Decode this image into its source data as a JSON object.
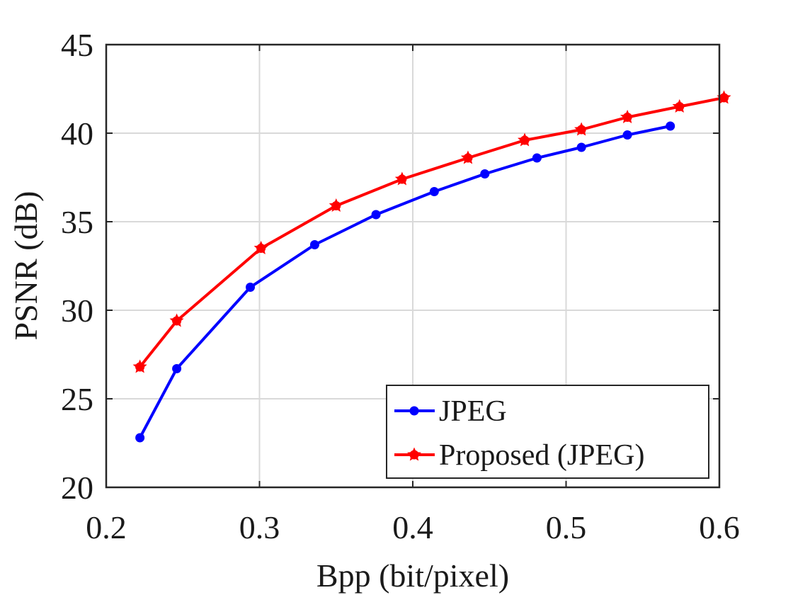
{
  "chart_data": {
    "type": "line",
    "xlabel": "Bpp (bit/pixel)",
    "ylabel": "PSNR (dB)",
    "xlim": [
      0.2,
      0.6
    ],
    "ylim": [
      20,
      45
    ],
    "xticks": [
      0.2,
      0.3,
      0.4,
      0.5,
      0.6
    ],
    "xtick_labels": [
      "0.2",
      "0.3",
      "0.4",
      "0.5",
      "0.6"
    ],
    "yticks": [
      20,
      25,
      30,
      35,
      40,
      45
    ],
    "ytick_labels": [
      "20",
      "25",
      "30",
      "35",
      "40",
      "45"
    ],
    "grid": true,
    "legend_position": "bottom-right",
    "series": [
      {
        "name": "JPEG",
        "color": "#0000ff",
        "marker": "dot",
        "x": [
          0.222,
          0.246,
          0.294,
          0.336,
          0.376,
          0.414,
          0.447,
          0.481,
          0.51,
          0.54,
          0.568
        ],
        "y": [
          22.8,
          26.7,
          31.3,
          33.7,
          35.4,
          36.7,
          37.7,
          38.6,
          39.2,
          39.9,
          40.4
        ]
      },
      {
        "name": "Proposed (JPEG)",
        "color": "#ff0000",
        "marker": "star",
        "x": [
          0.222,
          0.246,
          0.301,
          0.35,
          0.393,
          0.436,
          0.473,
          0.51,
          0.54,
          0.574,
          0.603
        ],
        "y": [
          26.8,
          29.4,
          33.5,
          35.9,
          37.4,
          38.6,
          39.6,
          40.2,
          40.9,
          41.5,
          42.0
        ]
      }
    ]
  }
}
